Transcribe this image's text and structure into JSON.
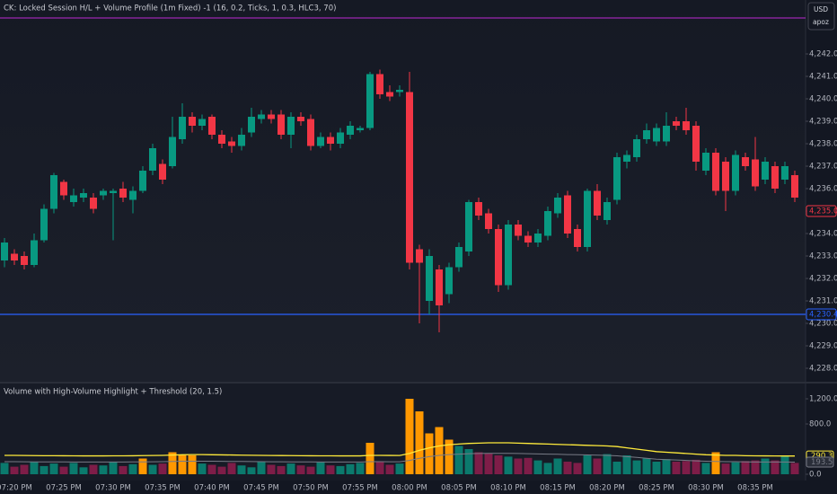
{
  "header": {
    "currency": "USD",
    "account": "apoz"
  },
  "chart_data": [
    {
      "type": "candlestick",
      "title": "CK: Locked Session H/L + Volume Profile (1m Fixed) -1 (16, 0.2, Ticks, 1, 0.3, HLC3, 70)",
      "categories": [
        null,
        "07:20 PM",
        null,
        null,
        null,
        null,
        "07:25 PM",
        null,
        null,
        null,
        null,
        "07:30 PM",
        null,
        null,
        null,
        null,
        "07:35 PM",
        null,
        null,
        null,
        null,
        "07:40 PM",
        null,
        null,
        null,
        null,
        "07:45 PM",
        null,
        null,
        null,
        null,
        "07:50 PM",
        null,
        null,
        null,
        null,
        "07:55 PM",
        null,
        null,
        null,
        null,
        "08:00 PM",
        null,
        null,
        null,
        null,
        "08:05 PM",
        null,
        null,
        null,
        null,
        "08:10 PM",
        null,
        null,
        null,
        null,
        "08:15 PM",
        null,
        null,
        null,
        null,
        "08:20 PM",
        null,
        null,
        null,
        null,
        "08:25 PM",
        null,
        null,
        null,
        null,
        "08:30 PM",
        null,
        null,
        null,
        null,
        "08:35 PM",
        null,
        null,
        null,
        null
      ],
      "open": [
        4232.8,
        4233.1,
        4233.0,
        4232.6,
        4233.7,
        4235.1,
        4236.3,
        4235.4,
        4235.6,
        4235.6,
        4235.7,
        4235.8,
        4236.0,
        4235.5,
        4235.9,
        4236.8,
        4237.1,
        4237.0,
        4238.2,
        4239.2,
        4238.8,
        4239.2,
        4238.4,
        4238.1,
        4237.9,
        4238.5,
        4239.1,
        4239.3,
        4239.3,
        4238.4,
        4239.2,
        4239.1,
        4237.9,
        4238.3,
        4238.0,
        4238.4,
        4238.6,
        4238.7,
        4241.1,
        4240.3,
        4240.3,
        4240.3,
        4233.3,
        4231.0,
        4232.4,
        4231.3,
        4232.5,
        4233.2,
        4235.4,
        4234.9,
        4234.2,
        4231.7,
        4234.4,
        4233.9,
        4233.6,
        4233.9,
        4234.9,
        4235.7,
        4234.2,
        4233.4,
        4235.9,
        4234.6,
        4235.5,
        4237.2,
        4237.4,
        4238.2,
        4238.1,
        4238.1,
        4239.0,
        4239.0,
        4238.8,
        4236.8,
        4237.6,
        4237.2,
        4235.9,
        4237.4,
        4237.3,
        4236.4,
        4237.0,
        4236.4,
        4236.6
      ],
      "high": [
        4233.8,
        4233.3,
        4233.2,
        4234.0,
        4235.3,
        4236.7,
        4236.4,
        4236.0,
        4236.0,
        4235.8,
        4236.0,
        4236.0,
        4236.3,
        4236.1,
        4237.0,
        4238.0,
        4237.3,
        4239.2,
        4239.8,
        4239.4,
        4239.3,
        4239.3,
        4238.6,
        4238.3,
        4238.7,
        4239.6,
        4239.5,
        4239.5,
        4239.5,
        4239.4,
        4239.4,
        4239.3,
        4238.5,
        4238.5,
        4238.7,
        4239.0,
        4238.8,
        4241.2,
        4241.3,
        4240.6,
        4240.6,
        4241.2,
        4233.5,
        4233.3,
        4232.6,
        4232.7,
        4233.6,
        4235.5,
        4235.6,
        4235.1,
        4234.4,
        4234.6,
        4234.6,
        4234.1,
        4234.2,
        4235.2,
        4235.8,
        4235.9,
        4234.4,
        4236.0,
        4236.2,
        4235.6,
        4237.6,
        4237.7,
        4238.4,
        4238.9,
        4238.9,
        4239.4,
        4239.2,
        4239.6,
        4239.0,
        4237.8,
        4237.8,
        4237.4,
        4237.7,
        4237.6,
        4238.3,
        4237.4,
        4237.2,
        4237.2,
        4236.8
      ],
      "low": [
        4232.5,
        4232.6,
        4232.4,
        4232.5,
        4233.6,
        4234.9,
        4235.5,
        4235.2,
        4235.4,
        4234.9,
        4235.5,
        4233.7,
        4235.4,
        4234.9,
        4235.8,
        4236.6,
        4236.2,
        4236.9,
        4238.0,
        4238.5,
        4238.6,
        4238.2,
        4237.8,
        4237.6,
        4237.7,
        4238.3,
        4238.9,
        4238.9,
        4238.2,
        4237.8,
        4238.8,
        4237.7,
        4237.8,
        4237.7,
        4237.8,
        4238.2,
        4238.5,
        4238.6,
        4240.0,
        4239.9,
        4240.1,
        4232.4,
        4230.0,
        4230.4,
        4229.6,
        4230.9,
        4232.3,
        4233.0,
        4234.6,
        4234.0,
        4231.4,
        4231.5,
        4233.7,
        4233.4,
        4233.4,
        4233.7,
        4234.7,
        4233.8,
        4233.2,
        4233.2,
        4234.6,
        4234.4,
        4235.3,
        4236.9,
        4237.2,
        4238.0,
        4237.9,
        4237.9,
        4238.6,
        4238.4,
        4236.8,
        4236.6,
        4235.7,
        4235.0,
        4235.7,
        4236.8,
        4235.9,
        4236.2,
        4235.8,
        4236.2,
        4235.4
      ],
      "close": [
        4233.6,
        4232.8,
        4232.6,
        4233.7,
        4235.1,
        4236.6,
        4235.7,
        4235.7,
        4235.8,
        4235.1,
        4235.9,
        4235.9,
        4235.6,
        4235.9,
        4236.8,
        4237.8,
        4236.4,
        4238.3,
        4239.2,
        4238.8,
        4239.1,
        4238.4,
        4238.0,
        4237.9,
        4238.4,
        4239.2,
        4239.3,
        4239.1,
        4238.4,
        4239.2,
        4239.0,
        4237.9,
        4238.3,
        4238.0,
        4238.5,
        4238.8,
        4238.7,
        4241.1,
        4240.2,
        4240.1,
        4240.4,
        4232.7,
        4232.7,
        4233.0,
        4230.8,
        4232.5,
        4233.4,
        4235.4,
        4234.8,
        4234.2,
        4231.7,
        4234.4,
        4233.9,
        4233.6,
        4234.0,
        4235.0,
        4235.6,
        4234.0,
        4233.4,
        4235.9,
        4234.8,
        4235.4,
        4237.4,
        4237.5,
        4238.2,
        4238.6,
        4238.7,
        4238.8,
        4238.8,
        4238.6,
        4237.2,
        4237.6,
        4235.9,
        4235.9,
        4237.5,
        4237.0,
        4236.1,
        4237.2,
        4236.0,
        4237.0,
        4235.6
      ],
      "up_color": "#089981",
      "down_color": "#f23645",
      "ylim": [
        4227.4,
        4244.4
      ],
      "yticks": [
        {
          "value": 4228,
          "label": "4,228.0"
        },
        {
          "value": 4229,
          "label": "4,229.0"
        },
        {
          "value": 4230,
          "label": "4,230.0"
        },
        {
          "value": 4231,
          "label": "4,231.0"
        },
        {
          "value": 4232,
          "label": "4,232.0"
        },
        {
          "value": 4233,
          "label": "4,233.0"
        },
        {
          "value": 4234,
          "label": "4,234.0"
        },
        {
          "value": 4235,
          "label": "4,235.0"
        },
        {
          "value": 4236,
          "label": "4,236.0"
        },
        {
          "value": 4237,
          "label": "4,237.0"
        },
        {
          "value": 4238,
          "label": "4,238.0"
        },
        {
          "value": 4239,
          "label": "4,239.0"
        },
        {
          "value": 4240,
          "label": "4,240.0"
        },
        {
          "value": 4241,
          "label": "4,241.0"
        },
        {
          "value": 4242,
          "label": "4,242.0"
        }
      ],
      "levels": [
        {
          "value": 4243.6,
          "color": "#9c27b0"
        },
        {
          "value": 4230.4,
          "label": "4,230.4",
          "color": "#2962ff"
        }
      ],
      "last_price": {
        "value": 4235.0,
        "label": "4,235.0",
        "color": "#f23645"
      }
    },
    {
      "type": "bar",
      "title": "Volume with High-Volume Highlight + Threshold (20, 1.5)",
      "values": [
        180,
        120,
        150,
        200,
        130,
        170,
        120,
        180,
        110,
        150,
        140,
        200,
        130,
        160,
        250,
        150,
        170,
        350,
        300,
        300,
        170,
        150,
        120,
        180,
        140,
        110,
        200,
        150,
        130,
        170,
        140,
        120,
        190,
        140,
        130,
        160,
        180,
        500,
        200,
        150,
        170,
        1200,
        1000,
        650,
        750,
        550,
        450,
        400,
        350,
        330,
        300,
        280,
        250,
        260,
        220,
        180,
        250,
        200,
        180,
        300,
        250,
        320,
        200,
        300,
        220,
        250,
        200,
        240,
        200,
        210,
        230,
        180,
        350,
        170,
        190,
        210,
        220,
        250,
        220,
        300,
        180
      ],
      "colors": [
        "#0b7a6d",
        "#7e1d48",
        "#7e1d48",
        "#0b7a6d",
        "#0b7a6d",
        "#0b7a6d",
        "#7e1d48",
        "#0b7a6d",
        "#0b7a6d",
        "#7e1d48",
        "#0b7a6d",
        "#0b7a6d",
        "#7e1d48",
        "#0b7a6d",
        "#ff9800",
        "#0b7a6d",
        "#7e1d48",
        "#ff9800",
        "#ff9800",
        "#ff9800",
        "#0b7a6d",
        "#7e1d48",
        "#7e1d48",
        "#7e1d48",
        "#0b7a6d",
        "#0b7a6d",
        "#0b7a6d",
        "#7e1d48",
        "#7e1d48",
        "#0b7a6d",
        "#7e1d48",
        "#7e1d48",
        "#0b7a6d",
        "#7e1d48",
        "#0b7a6d",
        "#0b7a6d",
        "#0b7a6d",
        "#ff9800",
        "#7e1d48",
        "#7e1d48",
        "#0b7a6d",
        "#ff9800",
        "#ff9800",
        "#ff9800",
        "#ff9800",
        "#ff9800",
        "#0b7a6d",
        "#0b7a6d",
        "#7e1d48",
        "#7e1d48",
        "#7e1d48",
        "#0b7a6d",
        "#7e1d48",
        "#7e1d48",
        "#0b7a6d",
        "#0b7a6d",
        "#0b7a6d",
        "#7e1d48",
        "#7e1d48",
        "#0b7a6d",
        "#7e1d48",
        "#0b7a6d",
        "#0b7a6d",
        "#0b7a6d",
        "#0b7a6d",
        "#0b7a6d",
        "#0b7a6d",
        "#0b7a6d",
        "#7e1d48",
        "#7e1d48",
        "#7e1d48",
        "#0b7a6d",
        "#ff9800",
        "#7e1d48",
        "#0b7a6d",
        "#7e1d48",
        "#7e1d48",
        "#0b7a6d",
        "#7e1d48",
        "#0b7a6d",
        "#7e1d48"
      ],
      "lines": [
        {
          "color": "#ffeb3b",
          "values": [
            300,
            300,
            298,
            296,
            295,
            295,
            294,
            293,
            292,
            292,
            292,
            293,
            293,
            294,
            296,
            298,
            300,
            305,
            310,
            312,
            312,
            310,
            308,
            306,
            304,
            302,
            300,
            298,
            297,
            296,
            295,
            294,
            293,
            293,
            292,
            292,
            292,
            300,
            300,
            299,
            298,
            330,
            380,
            420,
            450,
            470,
            480,
            490,
            495,
            500,
            500,
            500,
            495,
            490,
            485,
            480,
            475,
            470,
            465,
            460,
            455,
            450,
            440,
            420,
            400,
            380,
            360,
            350,
            340,
            330,
            320,
            310,
            305,
            300,
            300,
            295,
            293,
            292,
            291,
            290.5,
            290.3
          ]
        },
        {
          "color": "#787b86",
          "values": [
            200,
            200,
            199,
            197,
            197,
            197,
            196,
            195,
            195,
            195,
            195,
            195,
            195,
            196,
            197,
            199,
            200,
            203,
            207,
            208,
            208,
            207,
            205,
            204,
            203,
            201,
            200,
            199,
            198,
            197,
            197,
            196,
            195,
            195,
            195,
            195,
            195,
            200,
            200,
            199,
            199,
            220,
            253,
            280,
            300,
            313,
            320,
            327,
            330,
            333,
            333,
            333,
            330,
            327,
            323,
            320,
            317,
            313,
            310,
            307,
            303,
            300,
            293,
            280,
            267,
            253,
            240,
            233,
            227,
            220,
            213,
            207,
            203,
            200,
            200,
            197,
            195,
            195,
            194,
            193.8,
            193.5
          ]
        }
      ],
      "ylim": [
        0,
        1400
      ],
      "yticks": [
        {
          "value": 0,
          "label": "0.0"
        },
        {
          "value": 800,
          "label": "800.0"
        },
        {
          "value": 1200,
          "label": "1,200.0"
        }
      ]
    }
  ]
}
